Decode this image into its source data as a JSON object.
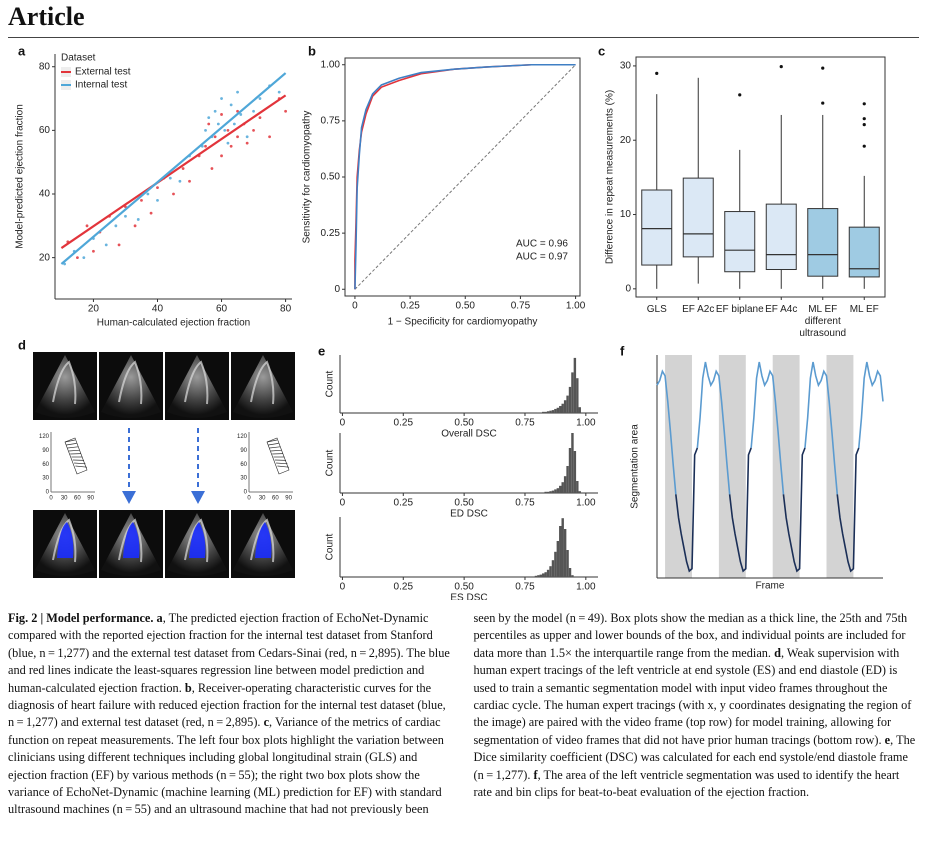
{
  "header": {
    "title": "Article"
  },
  "chart_data": [
    {
      "type": "scatter",
      "panel": "a",
      "legend_title": "Dataset",
      "legend": "top-left",
      "xlabel": "Human-calculated ejection fraction",
      "ylabel": "Model-predicted ejection fraction",
      "xlim": [
        8,
        82
      ],
      "ylim": [
        7,
        84
      ],
      "xticks": [
        20,
        40,
        60,
        80
      ],
      "yticks": [
        20,
        40,
        60,
        80
      ],
      "series": [
        {
          "name": "External test",
          "color": "#e2343b",
          "x": [
            12,
            15,
            18,
            20,
            22,
            25,
            28,
            30,
            33,
            35,
            38,
            40,
            42,
            45,
            48,
            50,
            53,
            55,
            56,
            57,
            58,
            60,
            60,
            62,
            63,
            65,
            65,
            67,
            68,
            70,
            72,
            75,
            78,
            80
          ],
          "y": [
            25,
            20,
            30,
            22,
            28,
            33,
            24,
            36,
            30,
            38,
            34,
            42,
            45,
            40,
            48,
            44,
            52,
            55,
            62,
            48,
            58,
            65,
            52,
            60,
            55,
            66,
            58,
            62,
            56,
            60,
            64,
            58,
            70,
            66
          ],
          "fit": {
            "x": [
              10,
              80
            ],
            "y": [
              23,
              71
            ]
          }
        },
        {
          "name": "Internal test",
          "color": "#4fa7d8",
          "x": [
            11,
            14,
            17,
            20,
            24,
            27,
            30,
            34,
            37,
            40,
            44,
            47,
            50,
            54,
            55,
            56,
            57,
            58,
            59,
            60,
            61,
            62,
            63,
            64,
            65,
            66,
            68,
            70,
            72,
            75,
            78
          ],
          "y": [
            18,
            22,
            20,
            26,
            24,
            30,
            33,
            32,
            40,
            38,
            45,
            44,
            52,
            55,
            60,
            64,
            58,
            66,
            62,
            70,
            60,
            56,
            68,
            62,
            72,
            65,
            58,
            66,
            70,
            74,
            72
          ],
          "fit": {
            "x": [
              10,
              80
            ],
            "y": [
              18,
              78
            ]
          }
        }
      ]
    },
    {
      "type": "line",
      "panel": "b",
      "xlabel": "1 − Specificity for cardiomyopathy",
      "ylabel": "Sensitivity for cardiomyopathy",
      "xlim": [
        -0.045,
        1.02
      ],
      "ylim": [
        -0.03,
        1.03
      ],
      "xticks": [
        0,
        0.25,
        {
          "value": 0.5,
          "label": "0.50"
        },
        0.75,
        {
          "value": 1,
          "label": "1.00"
        }
      ],
      "yticks": [
        0,
        0.25,
        {
          "value": 0.5,
          "label": "0.50"
        },
        0.75,
        {
          "value": 1,
          "label": "1.00"
        }
      ],
      "series": [
        {
          "color": "#e2343b",
          "x": [
            0,
            0,
            0.005,
            0.01,
            0.02,
            0.03,
            0.05,
            0.08,
            0.12,
            0.2,
            0.3,
            0.45,
            0.6,
            0.8,
            1
          ],
          "values": [
            0,
            0.13,
            0.3,
            0.5,
            0.62,
            0.7,
            0.78,
            0.86,
            0.9,
            0.93,
            0.96,
            0.98,
            0.99,
            1,
            1
          ]
        },
        {
          "color": "#3f7fc4",
          "x": [
            0,
            0.005,
            0.01,
            0.02,
            0.03,
            0.05,
            0.08,
            0.12,
            0.2,
            0.3,
            0.45,
            0.6,
            0.8,
            1
          ],
          "values": [
            0,
            0.2,
            0.45,
            0.6,
            0.72,
            0.8,
            0.87,
            0.91,
            0.94,
            0.965,
            0.98,
            0.99,
            1,
            1
          ]
        }
      ],
      "annotations": [
        {
          "text": "AUC = 0.96",
          "color": "#e2343b"
        },
        {
          "text": "AUC = 0.97",
          "color": "#3f7fc4"
        }
      ]
    },
    {
      "type": "box",
      "panel": "c",
      "ylabel": "Difference in repeat measurements (%)",
      "ylim": [
        -1.1,
        31.2
      ],
      "yticks": [
        0,
        10,
        20,
        30
      ],
      "categories": [
        "GLS",
        "EF A2c",
        "EF biplane",
        "EF A4c",
        "ML EF different ultrasound",
        "ML EF"
      ],
      "colors": [
        "#dbe8f5",
        "#dbe8f5",
        "#dbe8f5",
        "#dbe8f5",
        "#9fcbe3",
        "#9fcbe3"
      ],
      "boxes": [
        {
          "min": 0,
          "q1": 3.2,
          "median": 8.1,
          "q3": 13.3,
          "max": 26.2,
          "outliers": [
            29
          ]
        },
        {
          "min": 0.7,
          "q1": 4.3,
          "median": 7.4,
          "q3": 14.9,
          "max": 28.4,
          "outliers": []
        },
        {
          "min": 0,
          "q1": 2.3,
          "median": 5.2,
          "q3": 10.4,
          "max": 18.7,
          "outliers": [
            26.1
          ]
        },
        {
          "min": 0,
          "q1": 2.6,
          "median": 4.6,
          "q3": 11.4,
          "max": 23.4,
          "outliers": [
            29.9
          ]
        },
        {
          "min": 0,
          "q1": 1.7,
          "median": 4.6,
          "q3": 10.8,
          "max": 23.4,
          "outliers": [
            29.7,
            25
          ]
        },
        {
          "min": 0,
          "q1": 1.6,
          "median": 2.7,
          "q3": 8.3,
          "max": 15.2,
          "outliers": [
            24.9,
            22.9,
            22.1,
            19.2
          ]
        }
      ]
    },
    {
      "type": "histogram",
      "panel": "e",
      "xlabel": "Overall DSC",
      "ylabel": "Count",
      "color": "#555555",
      "xlim": [
        -0.01,
        1.05
      ],
      "ylim": [
        0,
        100
      ],
      "xticks": [
        0,
        0.25,
        {
          "value": 0.5,
          "label": "0.50"
        },
        0.75,
        {
          "value": 1,
          "label": "1.00"
        }
      ],
      "bins": [
        0.8,
        0.81,
        0.82,
        0.83,
        0.84,
        0.85,
        0.86,
        0.87,
        0.88,
        0.89,
        0.9,
        0.91,
        0.92,
        0.93,
        0.94,
        0.95,
        0.96,
        0.97,
        0.98
      ],
      "counts": [
        1,
        1,
        2,
        2,
        3,
        4,
        5,
        7,
        9,
        12,
        16,
        22,
        30,
        45,
        70,
        95,
        60,
        10
      ]
    },
    {
      "type": "histogram",
      "xlabel": "ED DSC",
      "ylabel": "Count",
      "color": "#555555",
      "xlim": [
        -0.01,
        1.05
      ],
      "ylim": [
        0,
        100
      ],
      "xticks": [
        0,
        0.25,
        {
          "value": 0.5,
          "label": "0.50"
        },
        0.75,
        {
          "value": 1,
          "label": "1.00"
        }
      ],
      "bins": [
        0.8,
        0.81,
        0.82,
        0.83,
        0.84,
        0.85,
        0.86,
        0.87,
        0.88,
        0.89,
        0.9,
        0.91,
        0.92,
        0.93,
        0.94,
        0.95,
        0.96,
        0.97,
        0.98
      ],
      "counts": [
        1,
        1,
        1,
        2,
        2,
        3,
        4,
        6,
        8,
        12,
        18,
        28,
        45,
        75,
        100,
        70,
        20,
        3
      ]
    },
    {
      "type": "histogram",
      "xlabel": "ES DSC",
      "ylabel": "Count",
      "color": "#555555",
      "xlim": [
        -0.01,
        1.05
      ],
      "ylim": [
        0,
        100
      ],
      "xticks": [
        0,
        0.25,
        {
          "value": 0.5,
          "label": "0.50"
        },
        0.75,
        {
          "value": 1,
          "label": "1.00"
        }
      ],
      "bins": [
        0.78,
        0.79,
        0.8,
        0.81,
        0.82,
        0.83,
        0.84,
        0.85,
        0.86,
        0.87,
        0.88,
        0.89,
        0.9,
        0.91,
        0.92,
        0.93,
        0.94,
        0.95,
        0.96
      ],
      "counts": [
        1,
        2,
        3,
        4,
        6,
        8,
        12,
        18,
        28,
        42,
        60,
        85,
        98,
        80,
        45,
        15,
        3,
        1
      ]
    },
    {
      "type": "line",
      "panel": "f",
      "xlabel": "Frame",
      "ylabel": "Segmentation area",
      "xlim": [
        0,
        84
      ],
      "ylim": [
        -1,
        95
      ],
      "band_color": "#d3d3d3",
      "bands": [
        [
          3,
          13
        ],
        [
          23,
          33
        ],
        [
          43,
          53
        ],
        [
          63,
          73
        ]
      ],
      "series": [
        {
          "color": "#5b9bd0",
          "values": [
            82,
            84,
            88,
            86,
            75,
            62,
            48,
            35,
            null,
            null,
            null,
            null,
            null,
            null,
            null,
            55,
            68,
            85,
            92,
            86,
            82,
            84,
            88,
            86,
            75,
            62,
            48,
            35,
            null,
            null,
            null,
            null,
            null,
            null,
            null,
            55,
            68,
            85,
            92,
            86,
            82,
            84,
            88,
            86,
            75,
            62,
            48,
            35,
            null,
            null,
            null,
            null,
            null,
            null,
            null,
            55,
            68,
            85,
            92,
            86,
            82,
            84,
            88,
            86,
            75,
            62,
            48,
            35,
            null,
            null,
            null,
            null,
            null,
            null,
            null,
            55,
            68,
            85,
            92,
            86,
            82,
            84,
            88,
            86,
            75
          ]
        },
        {
          "color": "#1b2f57",
          "values": [
            null,
            null,
            null,
            null,
            null,
            null,
            null,
            35,
            25,
            18,
            12,
            6,
            2,
            3,
            52,
            55,
            null,
            null,
            null,
            null,
            null,
            null,
            null,
            null,
            null,
            null,
            null,
            35,
            25,
            18,
            12,
            6,
            2,
            3,
            52,
            55,
            null,
            null,
            null,
            null,
            null,
            null,
            null,
            null,
            null,
            null,
            null,
            35,
            25,
            18,
            12,
            6,
            2,
            3,
            52,
            55,
            null,
            null,
            null,
            null,
            null,
            null,
            null,
            null,
            null,
            null,
            null,
            35,
            25,
            18,
            12,
            6,
            2,
            3,
            52,
            55,
            null,
            null,
            null,
            null,
            null,
            null,
            null,
            null,
            null
          ]
        }
      ]
    }
  ],
  "panel_d": {
    "panel": "d",
    "xticks": [
      0,
      30,
      60,
      90
    ],
    "yticks": [
      0,
      30,
      60,
      90,
      120
    ]
  },
  "caption": {
    "runs": [
      {
        "text": "Fig. 2 | Model performance.",
        "bold": true
      },
      {
        "text": " a",
        "bold": true
      },
      {
        "text": ", The predicted ejection fraction of EchoNet-Dynamic compared with the reported ejection fraction for the internal test dataset from Stanford (blue, n = 1,277) and the external test dataset from Cedars-Sinai (red, n = 2,895). The blue and red lines indicate the least-squares regression line between model prediction and human-calculated ejection fraction. ",
        "bold": false
      },
      {
        "text": "b",
        "bold": true
      },
      {
        "text": ", Receiver-operating characteristic curves for the diagnosis of heart failure with reduced ejection fraction for the internal test dataset (blue, n = 1,277) and external test dataset (red, n = 2,895). ",
        "bold": false
      },
      {
        "text": "c",
        "bold": true
      },
      {
        "text": ", Variance of the metrics of cardiac function on repeat measurements. The left four box plots highlight the variation between clinicians using different techniques including global longitudinal strain (GLS) and ejection fraction (EF) by various methods (n = 55); the right two box plots show the variance of EchoNet-Dynamic (machine learning (ML) prediction for EF) with standard ultrasound machines (n = 55) and an ultrasound machine that had not previously been seen by the model (n = 49). Box plots show the median as a thick line, the 25th and 75th percentiles as upper and lower bounds of the box, and individual points are included for data more than 1.5× the interquartile range from the median. ",
        "bold": false
      },
      {
        "text": "d",
        "bold": true
      },
      {
        "text": ", Weak supervision with human expert tracings of the left ventricle at end systole (ES) and end diastole (ED) is used to train a semantic segmentation model with input video frames throughout the cardiac cycle. The human expert tracings (with x, y coordinates designating the region of the image) are paired with the video frame (top row) for model training, allowing for segmentation of video frames that did not have prior human tracings (bottom row). ",
        "bold": false
      },
      {
        "text": "e",
        "bold": true
      },
      {
        "text": ", The Dice similarity coefficient (DSC) was calculated for each end systole/end diastole frame (n = 1,277). ",
        "bold": false
      },
      {
        "text": "f",
        "bold": true
      },
      {
        "text": ", The area of the left ventricle segmentation was used to identify the heart rate and bin clips for beat-to-beat evaluation of the ejection fraction.",
        "bold": false
      }
    ]
  }
}
